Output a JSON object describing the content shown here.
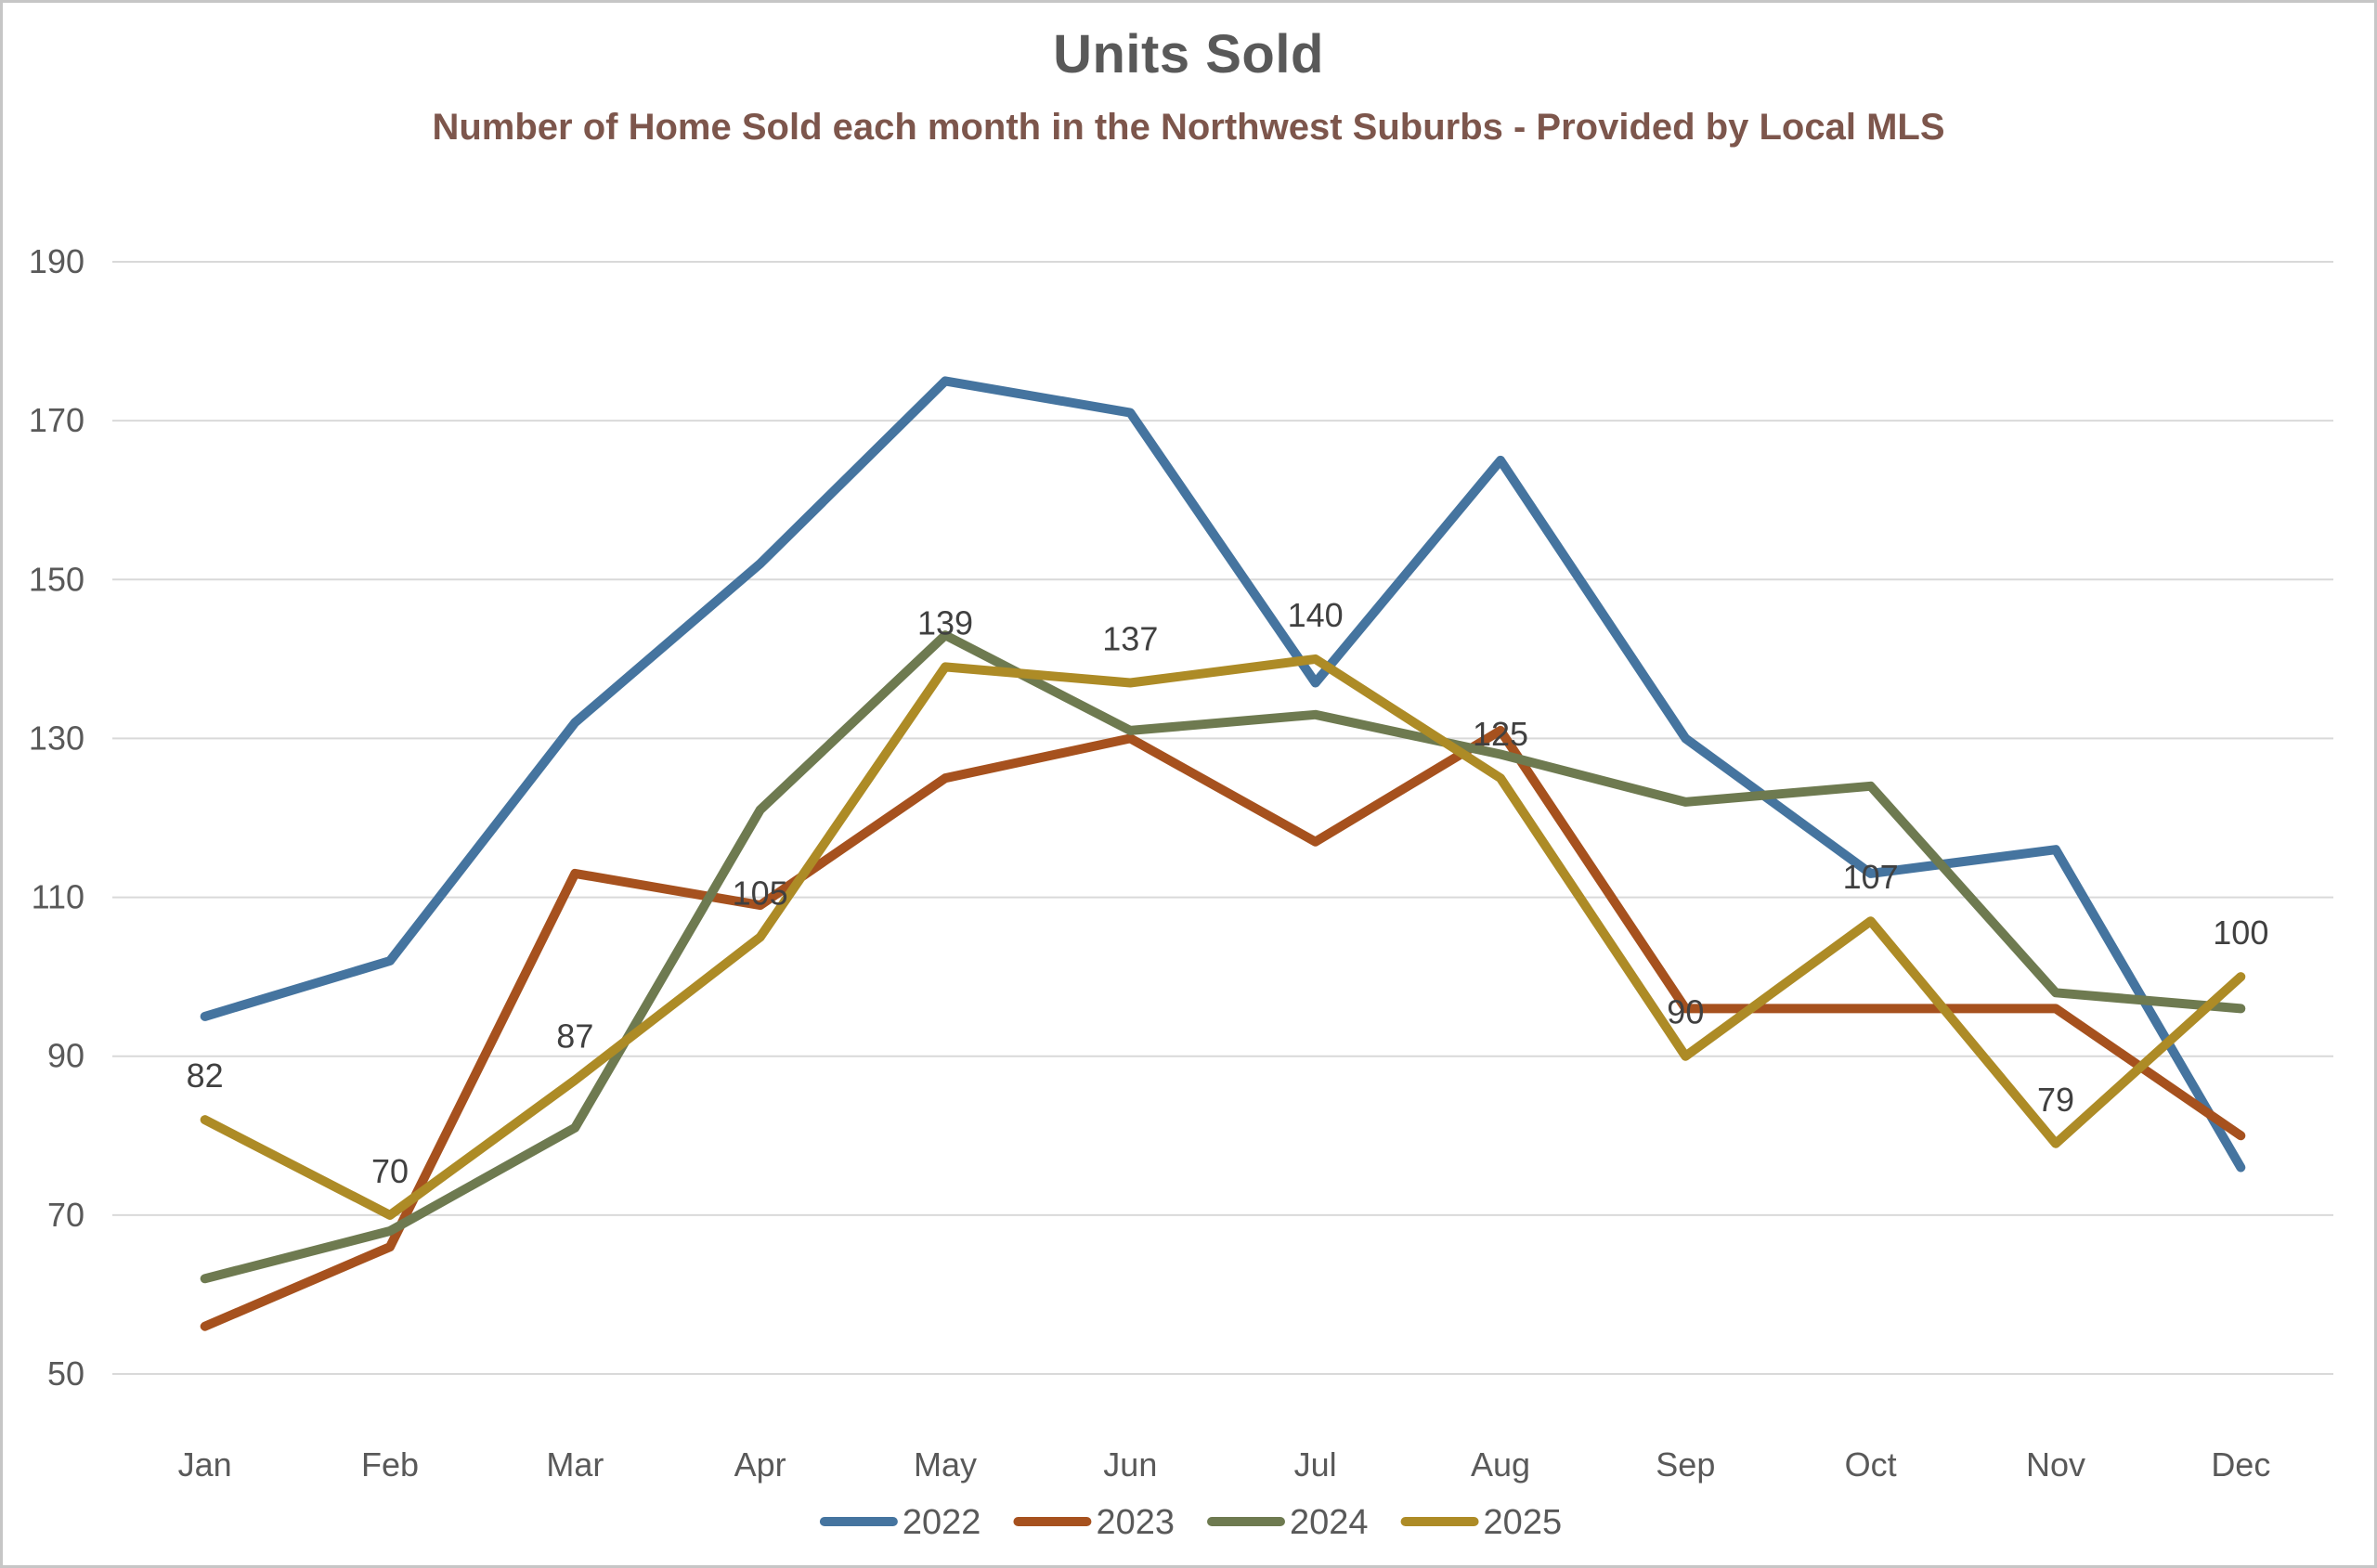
{
  "header": {
    "title": "Units Sold",
    "subtitle": "Number of Home Sold each month in the Northwest Suburbs - Provided by Local MLS",
    "title_color": "#595959",
    "subtitle_color": "#7D564C"
  },
  "chart_data": {
    "type": "line",
    "title": "Units Sold",
    "subtitle": "Number of Home Sold each month in the Northwest Suburbs - Provided by Local MLS",
    "categories": [
      "Jan",
      "Feb",
      "Mar",
      "Apr",
      "May",
      "Jun",
      "Jul",
      "Aug",
      "Sep",
      "Oct",
      "Nov",
      "Dec"
    ],
    "series": [
      {
        "name": "2022",
        "color": "#45749F",
        "values": [
          95,
          102,
          132,
          152,
          175,
          171,
          137,
          165,
          130,
          113,
          116,
          76
        ],
        "data_labels": false
      },
      {
        "name": "2023",
        "color": "#A6511E",
        "values": [
          56,
          66,
          113,
          109,
          125,
          130,
          117,
          131,
          96,
          96,
          96,
          80
        ],
        "data_labels": false
      },
      {
        "name": "2024",
        "color": "#6E7A50",
        "values": [
          62,
          68,
          81,
          121,
          143,
          131,
          133,
          128,
          122,
          124,
          98,
          96
        ],
        "data_labels": false
      },
      {
        "name": "2025",
        "color": "#AD8B26",
        "values": [
          82,
          70,
          87,
          105,
          139,
          137,
          140,
          125,
          90,
          107,
          79,
          100
        ],
        "data_labels": true
      }
    ],
    "ylim": [
      50,
      190
    ],
    "yticks": [
      50,
      70,
      90,
      110,
      130,
      150,
      170,
      190
    ],
    "grid": true,
    "gridline_color": "#D9D9D9",
    "axis_label_color": "#595959",
    "data_label_color": "#404040",
    "legend_position": "bottom",
    "legend_labels": [
      "2022",
      "2023",
      "2024",
      "2025"
    ]
  }
}
